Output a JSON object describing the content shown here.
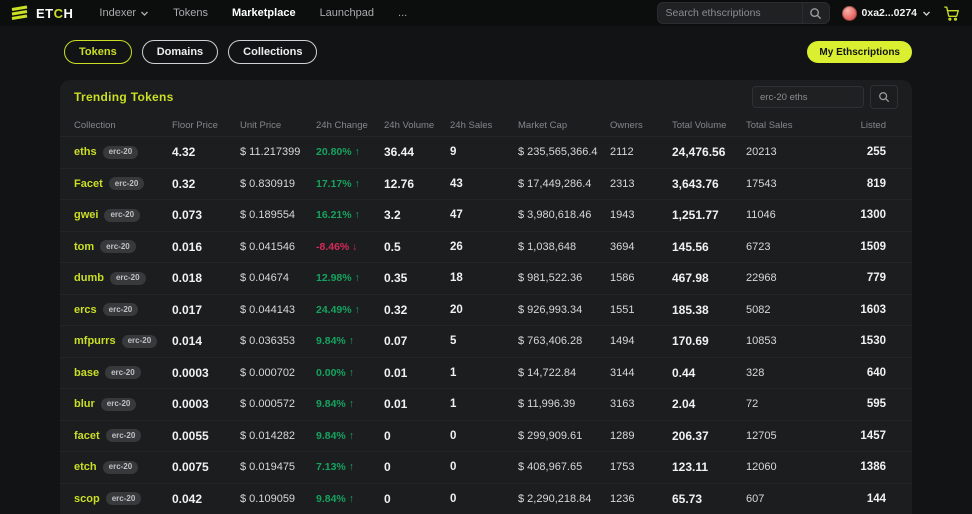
{
  "colors": {
    "accent": "#cbdf25",
    "accent_bright": "#d9ef2f",
    "green": "#16a360",
    "red": "#d62a5a"
  },
  "navbar": {
    "logo": {
      "text_left": "ET",
      "text_accent": "C",
      "text_right": "H"
    },
    "items": [
      {
        "label": "Indexer",
        "has_dropdown": true,
        "active": false
      },
      {
        "label": "Tokens",
        "has_dropdown": false,
        "active": false
      },
      {
        "label": "Marketplace",
        "has_dropdown": false,
        "active": true
      },
      {
        "label": "Launchpad",
        "has_dropdown": false,
        "active": false
      },
      {
        "label": "...",
        "has_dropdown": false,
        "active": false
      }
    ],
    "search_placeholder": "Search ethscriptions",
    "wallet": {
      "address": "0xa2...0274"
    }
  },
  "tabs": [
    {
      "label": "Tokens",
      "active": true
    },
    {
      "label": "Domains",
      "active": false
    },
    {
      "label": "Collections",
      "active": false
    }
  ],
  "my_ethscriptions_label": "My Ethscriptions",
  "panel": {
    "title": "Trending Tokens",
    "search_placeholder": "erc-20 eths",
    "columns": [
      "Collection",
      "Floor Price",
      "Unit Price",
      "24h Change",
      "24h Volume",
      "24h Sales",
      "Market Cap",
      "Owners",
      "Total Volume",
      "Total Sales",
      "Listed"
    ],
    "rows": [
      {
        "name": "eths",
        "badge": "erc-20",
        "floor": "4.32",
        "unit": "$ 11.217399",
        "change": "20.80%",
        "change_dir": "up",
        "vol24": "36.44",
        "sales24": "9",
        "mcap": "$ 235,565,366.4",
        "owners": "2112",
        "total_volume": "24,476.56",
        "total_sales": "20213",
        "listed": "255"
      },
      {
        "name": "Facet",
        "badge": "erc-20",
        "floor": "0.32",
        "unit": "$ 0.830919",
        "change": "17.17%",
        "change_dir": "up",
        "vol24": "12.76",
        "sales24": "43",
        "mcap": "$ 17,449,286.4",
        "owners": "2313",
        "total_volume": "3,643.76",
        "total_sales": "17543",
        "listed": "819"
      },
      {
        "name": "gwei",
        "badge": "erc-20",
        "floor": "0.073",
        "unit": "$ 0.189554",
        "change": "16.21%",
        "change_dir": "up",
        "vol24": "3.2",
        "sales24": "47",
        "mcap": "$ 3,980,618.46",
        "owners": "1943",
        "total_volume": "1,251.77",
        "total_sales": "11046",
        "listed": "1300"
      },
      {
        "name": "tom",
        "badge": "erc-20",
        "floor": "0.016",
        "unit": "$ 0.041546",
        "change": "-8.46%",
        "change_dir": "down",
        "vol24": "0.5",
        "sales24": "26",
        "mcap": "$ 1,038,648",
        "owners": "3694",
        "total_volume": "145.56",
        "total_sales": "6723",
        "listed": "1509"
      },
      {
        "name": "dumb",
        "badge": "erc-20",
        "floor": "0.018",
        "unit": "$ 0.04674",
        "change": "12.98%",
        "change_dir": "up",
        "vol24": "0.35",
        "sales24": "18",
        "mcap": "$ 981,522.36",
        "owners": "1586",
        "total_volume": "467.98",
        "total_sales": "22968",
        "listed": "779"
      },
      {
        "name": "ercs",
        "badge": "erc-20",
        "floor": "0.017",
        "unit": "$ 0.044143",
        "change": "24.49%",
        "change_dir": "up",
        "vol24": "0.32",
        "sales24": "20",
        "mcap": "$ 926,993.34",
        "owners": "1551",
        "total_volume": "185.38",
        "total_sales": "5082",
        "listed": "1603"
      },
      {
        "name": "mfpurrs",
        "badge": "erc-20",
        "floor": "0.014",
        "unit": "$ 0.036353",
        "change": "9.84%",
        "change_dir": "up",
        "vol24": "0.07",
        "sales24": "5",
        "mcap": "$ 763,406.28",
        "owners": "1494",
        "total_volume": "170.69",
        "total_sales": "10853",
        "listed": "1530"
      },
      {
        "name": "base",
        "badge": "erc-20",
        "floor": "0.0003",
        "unit": "$ 0.000702",
        "change": "0.00%",
        "change_dir": "up",
        "vol24": "0.01",
        "sales24": "1",
        "mcap": "$ 14,722.84",
        "owners": "3144",
        "total_volume": "0.44",
        "total_sales": "328",
        "listed": "640"
      },
      {
        "name": "blur",
        "badge": "erc-20",
        "floor": "0.0003",
        "unit": "$ 0.000572",
        "change": "9.84%",
        "change_dir": "up",
        "vol24": "0.01",
        "sales24": "1",
        "mcap": "$ 11,996.39",
        "owners": "3163",
        "total_volume": "2.04",
        "total_sales": "72",
        "listed": "595"
      },
      {
        "name": "facet",
        "badge": "erc-20",
        "floor": "0.0055",
        "unit": "$ 0.014282",
        "change": "9.84%",
        "change_dir": "up",
        "vol24": "0",
        "sales24": "0",
        "mcap": "$ 299,909.61",
        "owners": "1289",
        "total_volume": "206.37",
        "total_sales": "12705",
        "listed": "1457"
      },
      {
        "name": "etch",
        "badge": "erc-20",
        "floor": "0.0075",
        "unit": "$ 0.019475",
        "change": "7.13%",
        "change_dir": "up",
        "vol24": "0",
        "sales24": "0",
        "mcap": "$ 408,967.65",
        "owners": "1753",
        "total_volume": "123.11",
        "total_sales": "12060",
        "listed": "1386"
      },
      {
        "name": "scop",
        "badge": "erc-20",
        "floor": "0.042",
        "unit": "$ 0.109059",
        "change": "9.84%",
        "change_dir": "up",
        "vol24": "0",
        "sales24": "0",
        "mcap": "$ 2,290,218.84",
        "owners": "1236",
        "total_volume": "65.73",
        "total_sales": "607",
        "listed": "144"
      }
    ]
  }
}
